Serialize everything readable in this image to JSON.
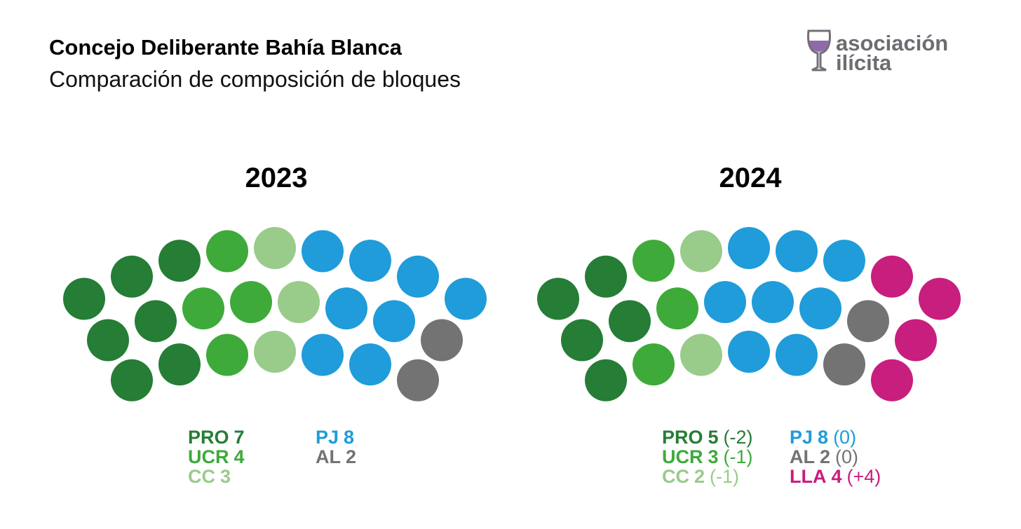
{
  "title": "Concejo Deliberante Bahía Blanca",
  "subtitle": "Comparación de composición de bloques",
  "logo": [
    "asociación",
    "ilícita"
  ],
  "chart_data": [
    {
      "type": "parliament",
      "title": "2023",
      "categories": [
        "PRO",
        "UCR",
        "CC",
        "PJ",
        "AL"
      ],
      "values": [
        7,
        4,
        3,
        8,
        2
      ],
      "colors": [
        "#257d36",
        "#3eaa3a",
        "#99cb8a",
        "#1f9cd9",
        "#747373"
      ]
    },
    {
      "type": "parliament",
      "title": "2024",
      "categories": [
        "PRO",
        "UCR",
        "CC",
        "PJ",
        "AL",
        "LLA"
      ],
      "values": [
        5,
        3,
        2,
        8,
        2,
        4
      ],
      "changes": [
        -2,
        -1,
        -1,
        0,
        0,
        4
      ],
      "change_labels": [
        "(-2)",
        "(-1)",
        "(-1)",
        "(0)",
        "(0)",
        "(+4)"
      ],
      "colors": [
        "#257d36",
        "#3eaa3a",
        "#99cb8a",
        "#1f9cd9",
        "#747373",
        "#c81e7d"
      ]
    }
  ]
}
